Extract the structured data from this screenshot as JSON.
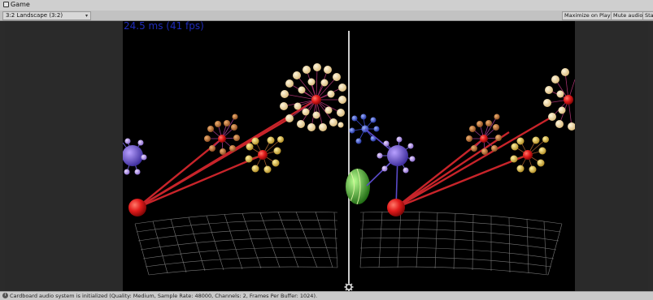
{
  "window": {
    "tab_title": "Game"
  },
  "toolbar": {
    "aspect_dropdown": "3:2 Landscape (3:2)",
    "maximize_on_play": "Maximize on Play",
    "mute_audio": "Mute audio",
    "stats_truncated": "Sta"
  },
  "viewport": {
    "fps_text": "24.5 ms (41 fps)"
  },
  "status": {
    "message": "Cardboard audio system is initialized (Quality: Medium, Sample Rate: 48000, Channels: 2, Frames Per Buffer: 1024)."
  },
  "colors": {
    "scene_bg": "#000000",
    "fps_text": "#1f2bb8",
    "red_node": "#e02020",
    "link_line": "#c8242a",
    "divider": "#ffffff"
  },
  "icons": {
    "tab": "game-icon",
    "settings": "gear-icon",
    "status": "info-icon"
  }
}
